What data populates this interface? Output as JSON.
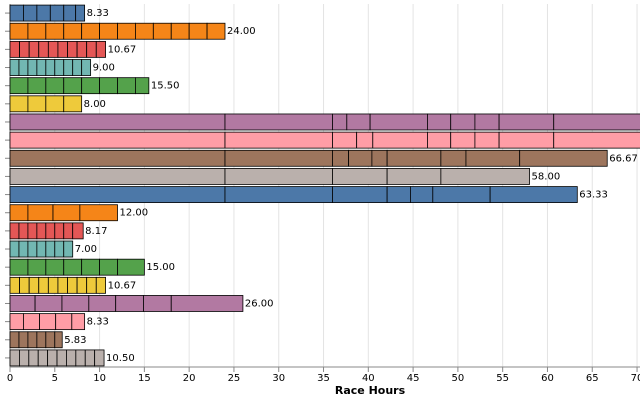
{
  "chart_data": {
    "type": "stacked-bar-horizontal",
    "x_label": "Race Hours",
    "xlim": [
      0,
      70.33
    ],
    "xticks": [
      0,
      5,
      10,
      15,
      20,
      25,
      30,
      35,
      40,
      45,
      50,
      55,
      60,
      65,
      70
    ],
    "grid": true,
    "categories": [
      null,
      null,
      null,
      null,
      null,
      null,
      null,
      null,
      null,
      null,
      null,
      null,
      null,
      null,
      null,
      null,
      null,
      null,
      null,
      null
    ],
    "rows": [
      {
        "color": "#4c78a8",
        "values": [
          1.5,
          1.5,
          1.5,
          1.5,
          1.33,
          1.0
        ]
      },
      {
        "color": "#f58518",
        "values": [
          2,
          2,
          2,
          2,
          2,
          2,
          2,
          2,
          2,
          2,
          2,
          2
        ]
      },
      {
        "color": "#e45756",
        "values": [
          1.07,
          1.07,
          1.07,
          1.07,
          1.07,
          1.07,
          1.07,
          1.07,
          1.07,
          1.04
        ]
      },
      {
        "color": "#72b7b2",
        "values": [
          1,
          1,
          1,
          1,
          1,
          1,
          1,
          1,
          1
        ]
      },
      {
        "color": "#54a24b",
        "values": [
          2,
          2,
          2,
          2,
          2,
          2,
          2,
          1.5
        ]
      },
      {
        "color": "#eeca3b",
        "values": [
          2,
          2,
          2,
          2
        ]
      },
      {
        "color": "#b279a2",
        "values": [
          24,
          12,
          1.6,
          2.6,
          6.4,
          2.6,
          2.7,
          2.7,
          6.1,
          10
        ]
      },
      {
        "color": "#ff9da6",
        "values": [
          24,
          12,
          2.7,
          1.8,
          6.1,
          2.6,
          2.7,
          2.7,
          6.1,
          10
        ]
      },
      {
        "color": "#9d755d",
        "values": [
          24,
          12,
          1.8,
          2.6,
          1.7,
          6,
          2.8,
          6,
          9.77
        ]
      },
      {
        "color": "#bab0ac",
        "values": [
          24,
          12,
          6.1,
          6,
          9.9
        ]
      },
      {
        "color": "#4c78a8",
        "values": [
          24,
          12,
          6.1,
          2.6,
          2.5,
          6.4,
          9.73
        ]
      },
      {
        "color": "#f58518",
        "values": [
          2,
          2.8,
          3,
          4.2
        ]
      },
      {
        "color": "#e45756",
        "values": [
          1,
          1,
          1,
          1,
          1,
          1,
          1,
          1.17
        ]
      },
      {
        "color": "#72b7b2",
        "values": [
          1,
          1,
          1,
          1,
          1,
          1,
          1
        ]
      },
      {
        "color": "#54a24b",
        "values": [
          2,
          2,
          2,
          2,
          2,
          2,
          3
        ]
      },
      {
        "color": "#eeca3b",
        "values": [
          1.07,
          1.07,
          1.07,
          1.07,
          1.07,
          1.07,
          1.07,
          1.07,
          1.07,
          1.04
        ]
      },
      {
        "color": "#b279a2",
        "values": [
          2.8,
          3,
          3,
          3,
          3.1,
          3.1,
          8
        ]
      },
      {
        "color": "#ff9da6",
        "values": [
          1.5,
          1.8,
          1.8,
          1.8,
          1.43
        ]
      },
      {
        "color": "#9d755d",
        "values": [
          1,
          1,
          1,
          1,
          1,
          0.83
        ]
      },
      {
        "color": "#bab0ac",
        "values": [
          1.05,
          1.05,
          1.05,
          1.05,
          1.05,
          1.05,
          1.05,
          1.05,
          1.05,
          1.05
        ]
      }
    ],
    "value_labels": [
      "8.33",
      "24.00",
      "10.67",
      "9.00",
      "15.50",
      "8.00",
      null,
      null,
      "66.67",
      "58.00",
      "63.33",
      "12.00",
      "8.17",
      "7.00",
      "15.00",
      "10.67",
      "26.00",
      "8.33",
      "5.83",
      "10.50"
    ]
  }
}
